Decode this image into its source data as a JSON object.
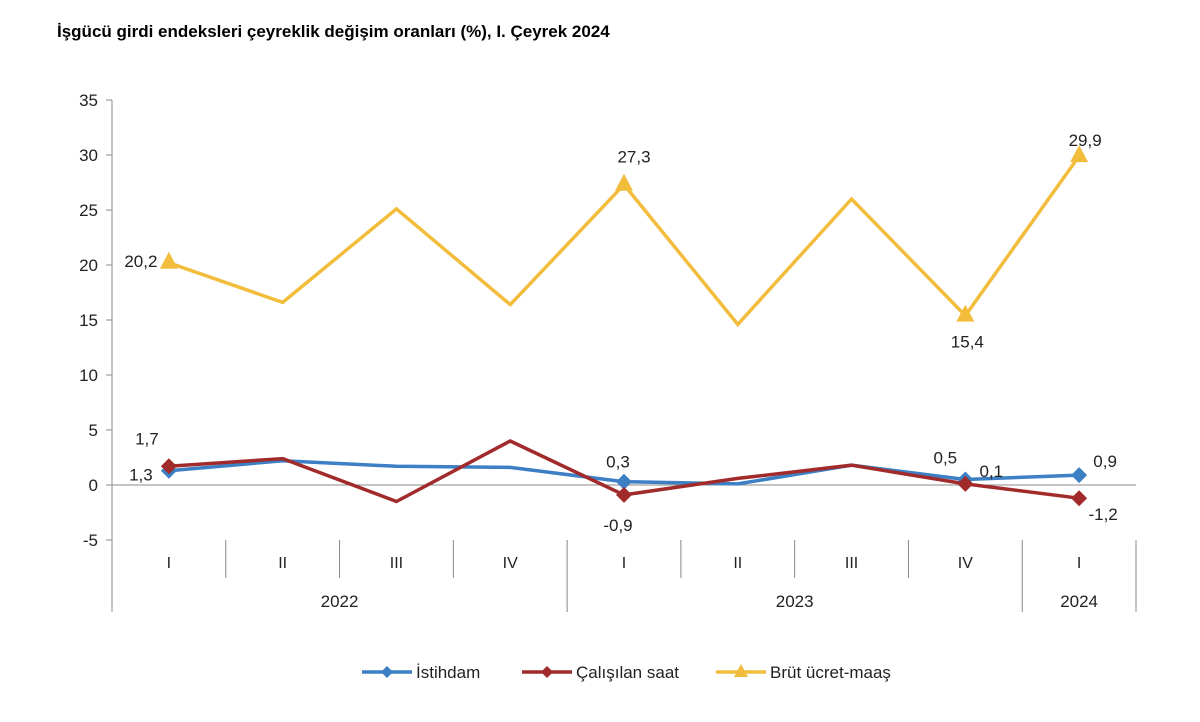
{
  "title": "İşgücü girdi endeksleri çeyreklik değişim oranları (%), I. Çeyrek 2024",
  "chart_data": {
    "type": "line",
    "categories": [
      "I",
      "II",
      "III",
      "IV",
      "I",
      "II",
      "III",
      "IV",
      "I"
    ],
    "year_groups": [
      {
        "label": "2022",
        "count": 4
      },
      {
        "label": "2023",
        "count": 4
      },
      {
        "label": "2024",
        "count": 1
      }
    ],
    "ylim": [
      -5,
      35
    ],
    "yticks": [
      "35",
      "30",
      "25",
      "20",
      "15",
      "10",
      "5",
      "0",
      "-5"
    ],
    "ytick_values": [
      35,
      30,
      25,
      20,
      15,
      10,
      5,
      0,
      -5
    ],
    "series": [
      {
        "name": "İstihdam",
        "color": "#3c7fc4",
        "marker": "diamond",
        "values": [
          1.3,
          2.2,
          1.7,
          1.6,
          0.3,
          0.1,
          1.8,
          0.5,
          0.9
        ],
        "labels": {
          "0": "1,3",
          "4": "0,3",
          "7": "0,5",
          "8": "0,9"
        }
      },
      {
        "name": "Çalışılan saat",
        "color": "#a12a2a",
        "marker": "diamond",
        "values": [
          1.7,
          2.4,
          -1.5,
          4.0,
          -0.9,
          0.6,
          1.8,
          0.1,
          -1.2
        ],
        "labels": {
          "0": "1,7",
          "4": "-0,9",
          "7": "0,1",
          "8": "-1,2"
        }
      },
      {
        "name": "Brüt ücret-maaş",
        "color": "#f2bd3c",
        "marker": "triangle",
        "values": [
          20.2,
          16.6,
          25.1,
          16.4,
          27.3,
          14.6,
          26.0,
          15.4,
          29.9
        ],
        "labels": {
          "0": "20,2",
          "4": "27,3",
          "7": "15,4",
          "8": "29,9"
        }
      }
    ],
    "legend_position": "bottom"
  }
}
